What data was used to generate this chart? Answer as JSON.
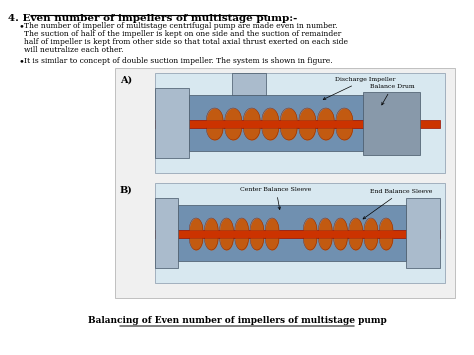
{
  "title": "4. Even number of impellers of multistage pump:-",
  "bullet1": "The number of impeller of multistage centrifugal pump are made even in number.\nThe suction of half of the impeller is kept on one side and the suction of remainder\nhalf of impeller is kept from other side so that total axial thrust exerted on each side\nwill neutralize each other.",
  "bullet2": "It is similar to concept of double suction impeller. The system is shown in figure.",
  "label_A": "A)",
  "label_B": "B)",
  "label_discharge": "Discharge Impeller",
  "label_balance_drum": "Balance Drum",
  "label_center": "Center Balance Sleeve",
  "label_end": "End Balance Sleeve",
  "caption": "Balancing of Even number of impellers of multistage pump",
  "bg_color": "#ffffff",
  "text_color": "#000000",
  "diagram_bg": "#d8e8f0",
  "shaft_color": "#cc3300",
  "impeller_color": "#cc5500",
  "casing_color": "#7090b0"
}
